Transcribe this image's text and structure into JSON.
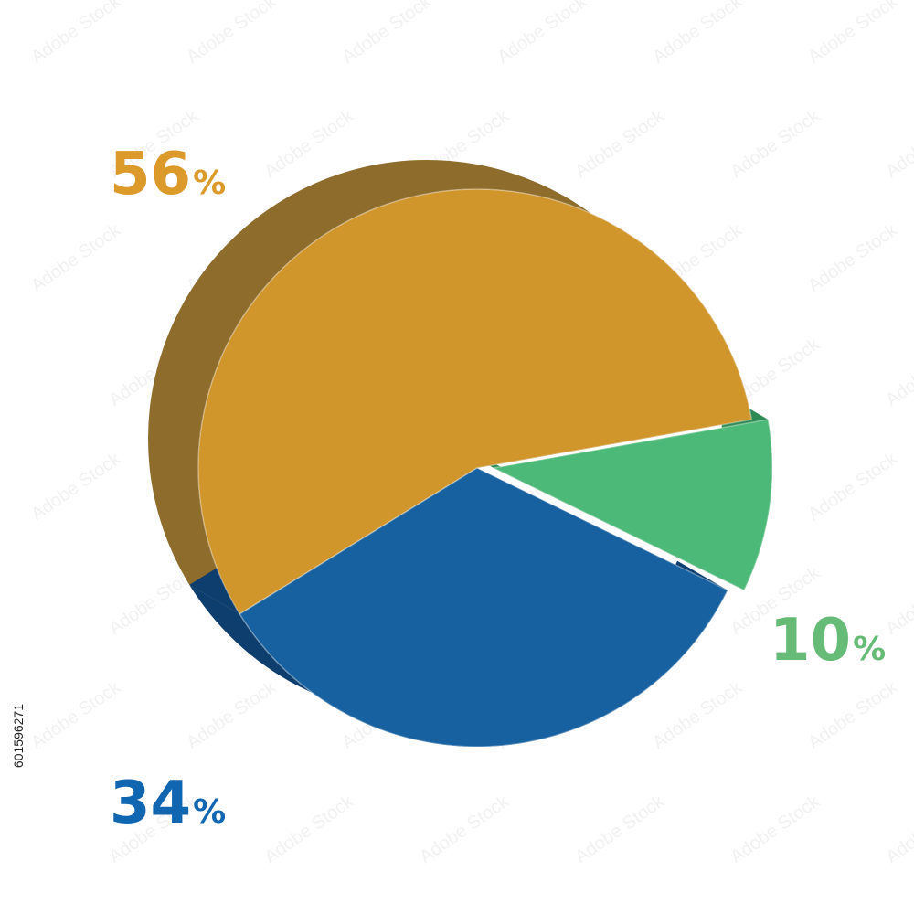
{
  "chart_data": {
    "type": "pie",
    "style": "3d",
    "values": [
      56,
      34,
      10
    ],
    "slices": [
      {
        "value": 56,
        "label": "56",
        "color": "#D0962C",
        "side_color": "#8E6C2C",
        "label_color": "#DC9A2A"
      },
      {
        "value": 34,
        "label": "34",
        "color": "#1761A0",
        "side_color": "#0E3E6E",
        "label_color": "#1166B2"
      },
      {
        "value": 10,
        "label": "10",
        "color": "#4CB978",
        "side_color": "#2E8A54",
        "label_color": "#66BB77"
      }
    ],
    "percent_symbol": "%",
    "title": ""
  },
  "stock_id": "601596271",
  "watermark": "Adobe Stock"
}
